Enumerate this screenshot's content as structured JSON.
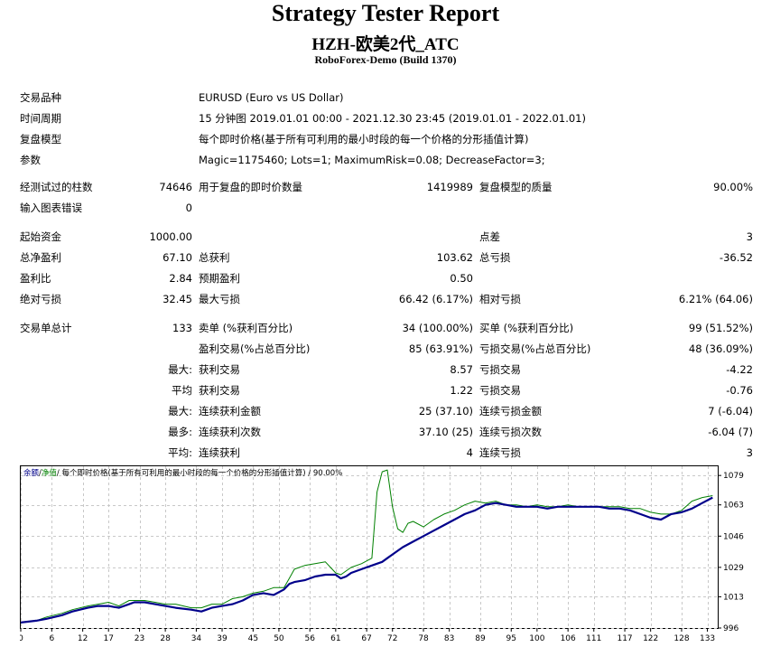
{
  "header": {
    "title": "Strategy Tester Report",
    "subtitle": "HZH-欧美2代_ATC",
    "server": "RoboForex-Demo (Build 1370)"
  },
  "settings": {
    "symbol_label": "交易品种",
    "symbol_value": "EURUSD (Euro vs US Dollar)",
    "period_label": "时间周期",
    "period_value": "15 分钟图 2019.01.01 00:00 - 2021.12.30 23:45 (2019.01.01 - 2022.01.01)",
    "model_label": "复盘模型",
    "model_value": "每个即时价格(基于所有可利用的最小时段的每一个价格的分形插值计算)",
    "params_label": "参数",
    "params_value": "Magic=1175460; Lots=1; MaximumRisk=0.08; DecreaseFactor=3;"
  },
  "stats": {
    "bars_label": "经测试过的柱数",
    "bars_value": "74646",
    "ticks_label": "用于复盘的即时价数量",
    "ticks_value": "1419989",
    "quality_label": "复盘模型的质量",
    "quality_value": "90.00%",
    "errors_label": "输入图表错误",
    "errors_value": "0",
    "deposit_label": "起始资金",
    "deposit_value": "1000.00",
    "spread_label": "点差",
    "spread_value": "3",
    "net_label": "总净盈利",
    "net_value": "67.10",
    "gross_profit_label": "总获利",
    "gross_profit_value": "103.62",
    "gross_loss_label": "总亏损",
    "gross_loss_value": "-36.52",
    "pf_label": "盈利比",
    "pf_value": "2.84",
    "payoff_label": "预期盈利",
    "payoff_value": "0.50",
    "abs_dd_label": "绝对亏损",
    "abs_dd_value": "32.45",
    "max_dd_label": "最大亏损",
    "max_dd_value": "66.42 (6.17%)",
    "rel_dd_label": "相对亏损",
    "rel_dd_value": "6.21% (64.06)",
    "trades_label": "交易单总计",
    "trades_value": "133",
    "short_label": "卖单 (%获利百分比)",
    "short_value": "34 (100.00%)",
    "long_label": "买单 (%获利百分比)",
    "long_value": "99 (51.52%)",
    "profit_trades_label": "盈利交易(%占总百分比)",
    "profit_trades_value": "85 (63.91%)",
    "loss_trades_label": "亏损交易(%占总百分比)",
    "loss_trades_value": "48 (36.09%)",
    "largest_prefix": "最大:",
    "largest_profit_label": "获利交易",
    "largest_profit_value": "8.57",
    "largest_loss_label": "亏损交易",
    "largest_loss_value": "-4.22",
    "average_prefix": "平均",
    "avg_profit_label": "获利交易",
    "avg_profit_value": "1.22",
    "avg_loss_label": "亏损交易",
    "avg_loss_value": "-0.76",
    "max_prefix": "最大:",
    "max_cons_wins_label": "连续获利金额",
    "max_cons_wins_value": "25 (37.10)",
    "max_cons_losses_label": "连续亏损金额",
    "max_cons_losses_value": "7 (-6.04)",
    "most_prefix": "最多:",
    "max_cons_profit_label": "连续获利次数",
    "max_cons_profit_value": "37.10 (25)",
    "max_cons_loss_label": "连续亏损次数",
    "max_cons_loss_value": "-6.04 (7)",
    "avg2_prefix": "平均:",
    "avg_cons_wins_label": "连续获利",
    "avg_cons_wins_value": "4",
    "avg_cons_losses_label": "连续亏损",
    "avg_cons_losses_value": "3"
  },
  "chart_data": {
    "type": "line",
    "legend_parts": [
      "余额",
      "/",
      "净值",
      "/ 每个即时价格(基于所有可利用的最小时段的每一个价格的分形插值计算) / 90.00%"
    ],
    "xlim": [
      0,
      135
    ],
    "ylim": [
      996,
      1084
    ],
    "x_ticks": [
      0,
      6,
      12,
      17,
      23,
      28,
      34,
      39,
      45,
      50,
      56,
      61,
      67,
      72,
      78,
      83,
      89,
      95,
      100,
      106,
      111,
      117,
      122,
      128,
      133
    ],
    "y_ticks": [
      996,
      1013,
      1029,
      1046,
      1063,
      1079
    ],
    "grid": true,
    "colors": {
      "balance": "#00008b",
      "equity": "#008000",
      "legend_balance": "#00008b",
      "legend_equity": "#008000"
    },
    "series": [
      {
        "name": "余额",
        "x": [
          0,
          3,
          5,
          8,
          10,
          13,
          15,
          17,
          19,
          21,
          22,
          24,
          26,
          28,
          30,
          33,
          35,
          37,
          39,
          41,
          43,
          45,
          47,
          49,
          51,
          52,
          53,
          55,
          57,
          59,
          61,
          62,
          63,
          64,
          66,
          68,
          70,
          71,
          72,
          74,
          76,
          78,
          80,
          82,
          84,
          86,
          88,
          90,
          92,
          94,
          96,
          98,
          100,
          102,
          104,
          106,
          108,
          110,
          112,
          114,
          116,
          118,
          120,
          122,
          124,
          126,
          128,
          130,
          132,
          134
        ],
        "y": [
          999,
          1000,
          1001,
          1003,
          1005,
          1007,
          1008,
          1008,
          1007,
          1009,
          1010,
          1010,
          1009,
          1008,
          1007,
          1006,
          1005,
          1007,
          1008,
          1009,
          1011,
          1014,
          1015,
          1014,
          1017,
          1020,
          1021,
          1022,
          1024,
          1025,
          1025,
          1023,
          1024,
          1026,
          1028,
          1030,
          1032,
          1034,
          1036,
          1040,
          1043,
          1046,
          1049,
          1052,
          1055,
          1058,
          1060,
          1063,
          1064,
          1063,
          1062,
          1062,
          1062,
          1061,
          1062,
          1062,
          1062,
          1062,
          1062,
          1061,
          1061,
          1060,
          1058,
          1056,
          1055,
          1058,
          1059,
          1061,
          1064,
          1067
        ]
      },
      {
        "name": "净值",
        "x": [
          0,
          3,
          5,
          8,
          10,
          13,
          15,
          17,
          19,
          21,
          22,
          24,
          26,
          28,
          30,
          33,
          35,
          37,
          39,
          41,
          43,
          45,
          47,
          49,
          51,
          52,
          53,
          55,
          57,
          59,
          61,
          62,
          63,
          64,
          66,
          68,
          69,
          70,
          71,
          72,
          73,
          74,
          75,
          76,
          78,
          80,
          82,
          84,
          86,
          88,
          90,
          92,
          94,
          96,
          98,
          100,
          102,
          104,
          106,
          108,
          110,
          112,
          114,
          116,
          118,
          120,
          122,
          124,
          126,
          128,
          130,
          132,
          134
        ],
        "y": [
          999,
          1000,
          1002,
          1004,
          1006,
          1008,
          1009,
          1010,
          1008,
          1011,
          1011,
          1011,
          1010,
          1009,
          1009,
          1007,
          1007,
          1009,
          1009,
          1012,
          1013,
          1015,
          1016,
          1018,
          1018,
          1023,
          1028,
          1030,
          1031,
          1032,
          1026,
          1025,
          1027,
          1029,
          1031,
          1034,
          1070,
          1081,
          1082,
          1062,
          1050,
          1048,
          1053,
          1054,
          1051,
          1055,
          1058,
          1060,
          1063,
          1065,
          1064,
          1065,
          1063,
          1063,
          1062,
          1063,
          1062,
          1062,
          1063,
          1062,
          1062,
          1062,
          1062,
          1062,
          1061,
          1061,
          1059,
          1058,
          1058,
          1060,
          1065,
          1067,
          1068
        ]
      }
    ]
  }
}
